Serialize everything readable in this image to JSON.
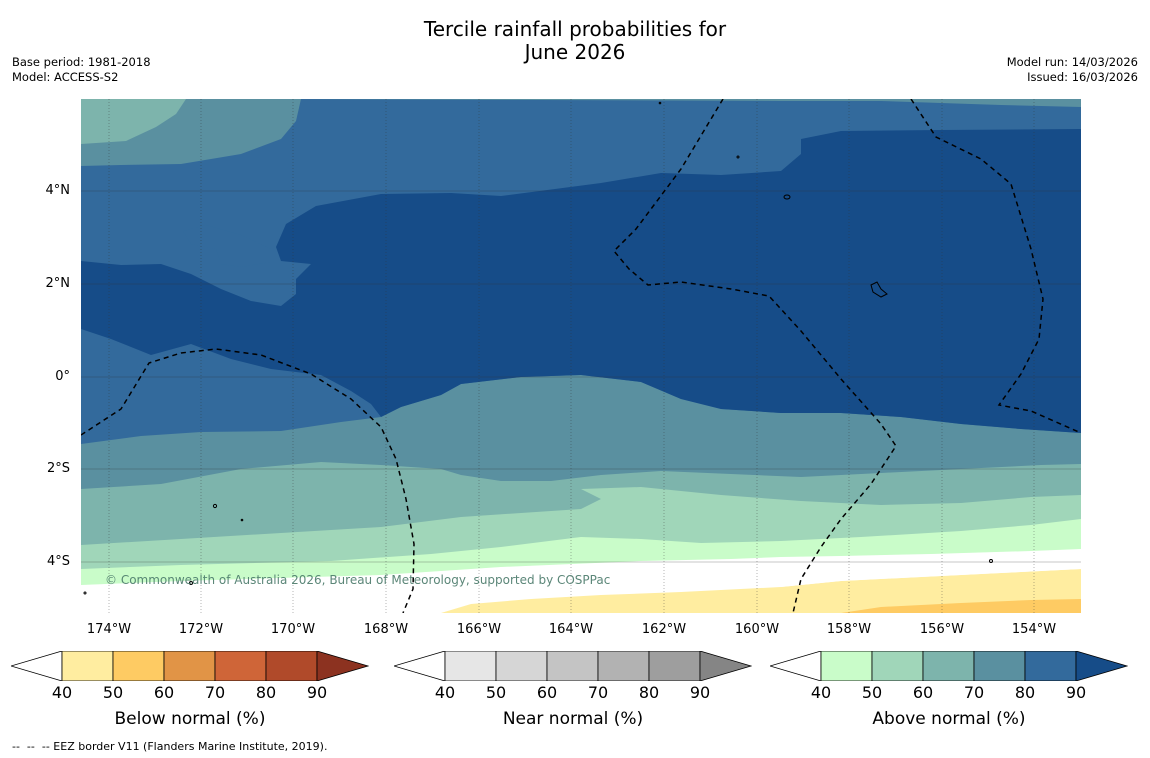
{
  "title_line1": "Tercile rainfall probabilities for",
  "title_line2": "June 2026",
  "base_period": "Base period: 1981-2018",
  "model": "Model: ACCESS-S2",
  "model_run": "Model run: 14/03/2026",
  "issued": "Issued: 16/03/2026",
  "copyright": "© Commonwealth of Australia 2026, Bureau of Meteorology, supported by COSPPac",
  "lat_labels": [
    "4°N",
    "2°N",
    "0°",
    "2°S",
    "4°S"
  ],
  "lon_labels": [
    "174°W",
    "172°W",
    "170°W",
    "168°W",
    "166°W",
    "164°W",
    "162°W",
    "160°W",
    "158°W",
    "156°W",
    "154°W"
  ],
  "colorbars": [
    {
      "label": "Below normal (%)",
      "ticks": [
        "40",
        "50",
        "60",
        "70",
        "80",
        "90"
      ],
      "colors": [
        "#ffffff",
        "#ffeda0",
        "#fecb63",
        "#e19446",
        "#cf6538",
        "#b04a2a",
        "#8c3220"
      ]
    },
    {
      "label": "Near normal (%)",
      "ticks": [
        "40",
        "50",
        "60",
        "70",
        "80",
        "90"
      ],
      "colors": [
        "#ffffff",
        "#e6e6e6",
        "#d6d6d6",
        "#c4c4c4",
        "#b2b2b2",
        "#9e9e9e",
        "#858585"
      ]
    },
    {
      "label": "Above normal (%)",
      "ticks": [
        "40",
        "50",
        "60",
        "70",
        "80",
        "90"
      ],
      "colors": [
        "#ffffff",
        "#c9fcc9",
        "#a0d6b9",
        "#7db4ac",
        "#5a90a0",
        "#336a9c",
        "#164c88"
      ]
    }
  ],
  "footnote": "--  --  -- EEZ border V11 (Flanders Marine Institute, 2019)."
}
